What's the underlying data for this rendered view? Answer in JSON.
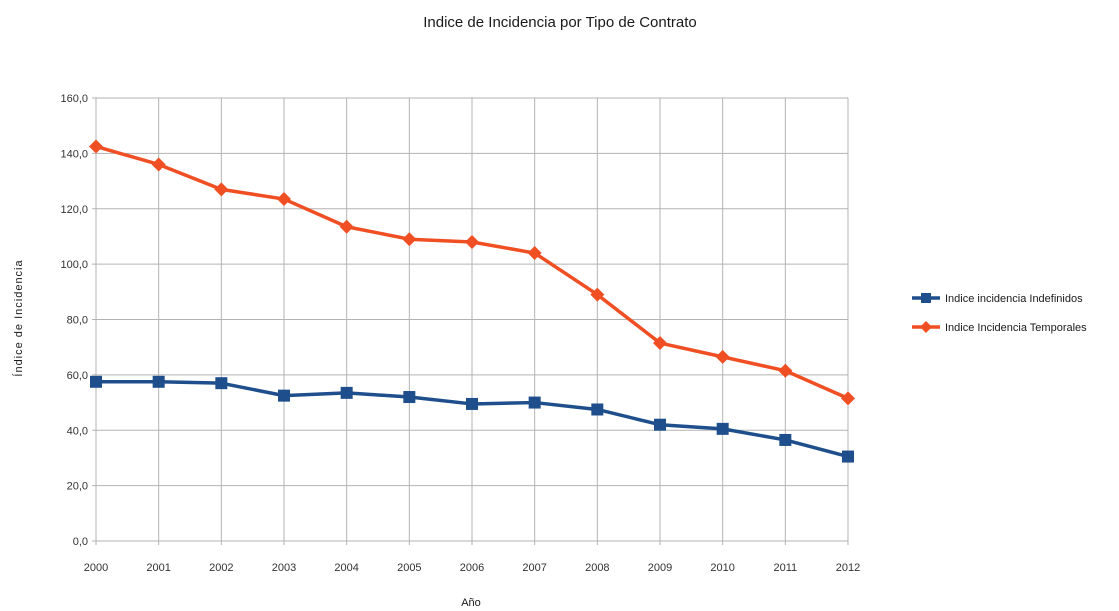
{
  "chart_data": {
    "type": "line",
    "title": "Indice de Incidencia por Tipo de Contrato",
    "xlabel": "Año",
    "ylabel": "Índice de Incidencia",
    "categories": [
      "2000",
      "2001",
      "2002",
      "2003",
      "2004",
      "2005",
      "2006",
      "2007",
      "2008",
      "2009",
      "2010",
      "2011",
      "2012"
    ],
    "ylim": [
      0,
      160
    ],
    "yticks": [
      "0,0",
      "20,0",
      "40,0",
      "60,0",
      "80,0",
      "100,0",
      "120,0",
      "140,0",
      "160,0"
    ],
    "grid": true,
    "legend_position": "right",
    "series": [
      {
        "name": "Indice incidencia Indefinidos",
        "color": "#1f4e8c",
        "marker": "square",
        "values": [
          57.5,
          57.5,
          57.0,
          52.5,
          53.5,
          52.0,
          49.5,
          50.0,
          47.5,
          42.0,
          40.5,
          36.5,
          30.5
        ]
      },
      {
        "name": "Indice Incidencia Temporales",
        "color": "#f04e23",
        "marker": "diamond",
        "values": [
          142.5,
          136.0,
          127.0,
          123.5,
          113.5,
          109.0,
          108.0,
          104.0,
          89.0,
          71.5,
          66.5,
          61.5,
          51.5
        ]
      }
    ]
  }
}
